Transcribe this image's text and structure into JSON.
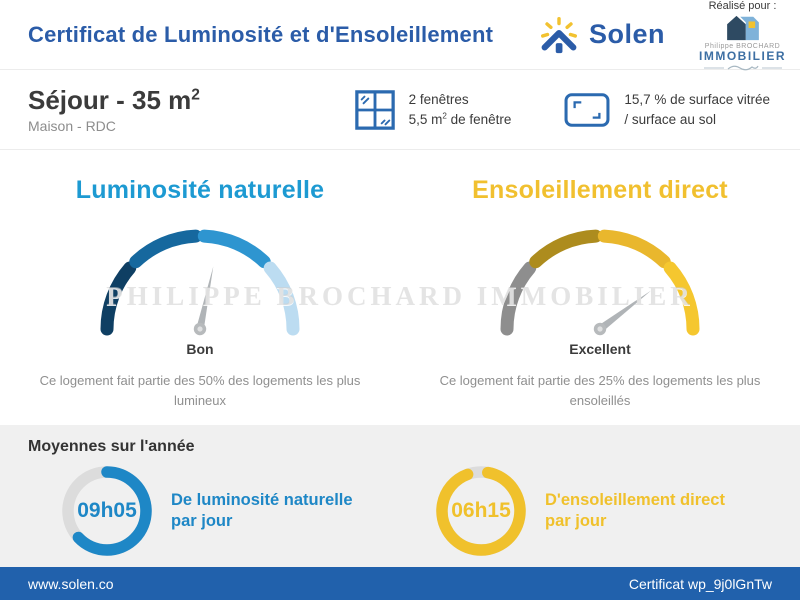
{
  "header": {
    "title": "Certificat de Luminosité et d'Ensoleillement",
    "brand_name": "Solen",
    "realised_for": "Réalisé pour :",
    "client": {
      "name_line": "Philippe BROCHARD",
      "type_line": "IMMOBILIER"
    }
  },
  "room": {
    "name_pre": "Séjour - 35 m",
    "name_sup": "2",
    "subtitle": "Maison - RDC"
  },
  "window_stats": {
    "windows": {
      "line1": "2 fenêtres",
      "line2_pre": "5,5 m",
      "line2_sup": "2",
      "line2_post": " de fenêtre"
    },
    "glazing": {
      "line1": "15,7 % de surface vitrée",
      "line2": "/ surface au sol"
    }
  },
  "gauges": [
    {
      "title": "Luminosité naturelle",
      "title_color": "#1d9ad2",
      "rating": "Bon",
      "description_line1": "Ce logement fait partie des 50% des logements les plus",
      "description_line2": "lumineux",
      "segment_colors": [
        "#0f3f63",
        "#16689e",
        "#2e95d0",
        "#bcdcf1"
      ],
      "needle_angle_deg": 12
    },
    {
      "title": "Ensoleillement direct",
      "title_color": "#f1c02f",
      "rating": "Excellent",
      "description_line1": "Ce logement fait partie des 25% des logements les plus",
      "description_line2": "ensoleillés",
      "segment_colors": [
        "#8e8e8e",
        "#ad8c1e",
        "#e9b72d",
        "#f5c72f"
      ],
      "needle_angle_deg": 53
    }
  ],
  "watermark": "PHILIPPE BROCHARD IMMOBILIER",
  "averages": {
    "heading": "Moyennes sur l'année",
    "track_color": "#dcdcdc",
    "items": [
      {
        "value": "09h05",
        "label_line1": "De luminosité naturelle",
        "label_line2": "par jour",
        "color": "#1e87c6",
        "fraction": 0.63,
        "start_deg": 0
      },
      {
        "value": "06h15",
        "label_line1": "D'ensoleillement direct",
        "label_line2": "par jour",
        "color": "#f0c12c",
        "fraction": 0.915,
        "start_deg": 10
      }
    ]
  },
  "footer": {
    "website": "www.solen.co",
    "certificate_label": "Certificat wp_9j0lGnTw"
  }
}
